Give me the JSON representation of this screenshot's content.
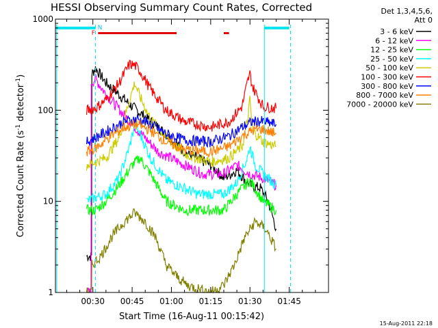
{
  "title": "HESSI Observing Summary Count Rates, Corrected",
  "footer_date": "15-Aug-2011 22:18",
  "chart_data": {
    "type": "line",
    "title": "HESSI Observing Summary Count Rates, Corrected",
    "xlabel": "Start Time (16-Aug-11 00:15:42)",
    "ylabel": "Corrected Count Rate (s^-1 detector^-1)",
    "ylabel_parts": [
      "Corrected Count Rate (s",
      "-1",
      " detector",
      "-1",
      ")"
    ],
    "y_scale": "log",
    "ylim": [
      1,
      1000
    ],
    "xlim_minutes": [
      15.7,
      57.5
    ],
    "x_ticks": [
      {
        "t": 30,
        "label": "00:30"
      },
      {
        "t": 45,
        "label": "00:45"
      },
      {
        "t": 60,
        "label": "01:00"
      },
      {
        "t": 75,
        "label": "01:15"
      },
      {
        "t": 90,
        "label": "01:30"
      },
      {
        "t": 105,
        "label": "01:45"
      }
    ],
    "y_ticks": [
      {
        "v": 1,
        "label": "1"
      },
      {
        "v": 10,
        "label": "10"
      },
      {
        "v": 100,
        "label": "100"
      },
      {
        "v": 1000,
        "label": "1000"
      }
    ],
    "legend": {
      "header": [
        "Det 1,3,4,5,6,",
        "Att 0"
      ],
      "placement": "right"
    },
    "flags": {
      "F_label": "F",
      "N_label": "N",
      "F_segments_min": [
        [
          32,
          62
        ],
        [
          80,
          82
        ]
      ],
      "night_segments_min": [
        [
          15.9,
          31
        ],
        [
          95.5,
          105
        ]
      ]
    },
    "vertical_lines_min": [
      31,
      95.5
    ],
    "data_gaps_min": [
      [
        15.9,
        27.6
      ],
      [
        96.3,
        121
      ]
    ],
    "series": [
      {
        "name": "3 - 6 keV",
        "color": "#000000",
        "points": [
          [
            27.6,
            2.5
          ],
          [
            29.5,
            2.5
          ],
          [
            29.6,
            250
          ],
          [
            31,
            290
          ],
          [
            35,
            200
          ],
          [
            45,
            110
          ],
          [
            55,
            65
          ],
          [
            65,
            35
          ],
          [
            75,
            25
          ],
          [
            80,
            18
          ],
          [
            85,
            22
          ],
          [
            90,
            15
          ],
          [
            94,
            14
          ],
          [
            97,
            10
          ],
          [
            100,
            5
          ]
        ]
      },
      {
        "name": "6 - 12 keV",
        "color": "#ff00ff",
        "points": [
          [
            27.6,
            1
          ],
          [
            29.3,
            1
          ],
          [
            29.4,
            200
          ],
          [
            31,
            220
          ],
          [
            35,
            150
          ],
          [
            45,
            70
          ],
          [
            55,
            35
          ],
          [
            65,
            25
          ],
          [
            72,
            20
          ],
          [
            80,
            20
          ],
          [
            85,
            25
          ],
          [
            90,
            20
          ],
          [
            95,
            18
          ],
          [
            100,
            15
          ]
        ]
      },
      {
        "name": "12 - 25 keV",
        "color": "#00ff00",
        "points": [
          [
            27.6,
            8
          ],
          [
            31,
            8
          ],
          [
            35,
            10
          ],
          [
            40,
            15
          ],
          [
            45,
            25
          ],
          [
            48,
            30
          ],
          [
            52,
            20
          ],
          [
            58,
            10
          ],
          [
            65,
            8
          ],
          [
            80,
            8
          ],
          [
            85,
            12
          ],
          [
            90,
            17
          ],
          [
            95,
            10
          ],
          [
            100,
            8
          ]
        ]
      },
      {
        "name": "25 - 50 keV",
        "color": "#00ffff",
        "points": [
          [
            27.6,
            10
          ],
          [
            31,
            11
          ],
          [
            35,
            12
          ],
          [
            40,
            18
          ],
          [
            44,
            40
          ],
          [
            46,
            70
          ],
          [
            48,
            55
          ],
          [
            52,
            30
          ],
          [
            58,
            17
          ],
          [
            70,
            12
          ],
          [
            80,
            12
          ],
          [
            85,
            16
          ],
          [
            89,
            30
          ],
          [
            90,
            40
          ],
          [
            92,
            25
          ],
          [
            95,
            20
          ],
          [
            100,
            15
          ]
        ]
      },
      {
        "name": "50 - 100 keV",
        "color": "#cccc00",
        "points": [
          [
            27.6,
            25
          ],
          [
            31,
            27
          ],
          [
            35,
            30
          ],
          [
            40,
            50
          ],
          [
            44,
            130
          ],
          [
            46,
            200
          ],
          [
            48,
            140
          ],
          [
            52,
            80
          ],
          [
            58,
            50
          ],
          [
            65,
            33
          ],
          [
            75,
            27
          ],
          [
            82,
            30
          ],
          [
            87,
            40
          ],
          [
            89,
            75
          ],
          [
            90,
            130
          ],
          [
            91,
            60
          ],
          [
            95,
            45
          ],
          [
            100,
            40
          ]
        ]
      },
      {
        "name": "100 - 300 keV",
        "color": "#ff0000",
        "points": [
          [
            27.6,
            100
          ],
          [
            31,
            105
          ],
          [
            35,
            130
          ],
          [
            40,
            200
          ],
          [
            44,
            320
          ],
          [
            46,
            310
          ],
          [
            48,
            270
          ],
          [
            52,
            170
          ],
          [
            58,
            100
          ],
          [
            65,
            75
          ],
          [
            75,
            65
          ],
          [
            82,
            75
          ],
          [
            87,
            110
          ],
          [
            89,
            200
          ],
          [
            90,
            250
          ],
          [
            91,
            180
          ],
          [
            95,
            110
          ],
          [
            100,
            105
          ]
        ]
      },
      {
        "name": "300 - 800 keV",
        "color": "#0000ff",
        "points": [
          [
            27.6,
            45
          ],
          [
            31,
            50
          ],
          [
            36,
            60
          ],
          [
            42,
            75
          ],
          [
            47,
            80
          ],
          [
            52,
            70
          ],
          [
            58,
            55
          ],
          [
            65,
            47
          ],
          [
            75,
            45
          ],
          [
            82,
            52
          ],
          [
            87,
            65
          ],
          [
            91,
            75
          ],
          [
            95,
            75
          ],
          [
            100,
            70
          ]
        ]
      },
      {
        "name": "800 - 7000 keV",
        "color": "#ff8000",
        "points": [
          [
            27.6,
            35
          ],
          [
            31,
            38
          ],
          [
            36,
            50
          ],
          [
            42,
            65
          ],
          [
            47,
            70
          ],
          [
            52,
            60
          ],
          [
            58,
            45
          ],
          [
            65,
            37
          ],
          [
            75,
            35
          ],
          [
            82,
            40
          ],
          [
            87,
            52
          ],
          [
            91,
            60
          ],
          [
            95,
            62
          ],
          [
            100,
            55
          ]
        ]
      },
      {
        "name": "7000 - 20000 keV",
        "color": "#808000",
        "points": [
          [
            27.6,
            1
          ],
          [
            29.5,
            1
          ],
          [
            29.6,
            2
          ],
          [
            33,
            2.5
          ],
          [
            37,
            4
          ],
          [
            42,
            6
          ],
          [
            46,
            7.5
          ],
          [
            50,
            6
          ],
          [
            54,
            4
          ],
          [
            58,
            2
          ],
          [
            62,
            1.5
          ],
          [
            66,
            1.2
          ],
          [
            75,
            1
          ],
          [
            80,
            1.2
          ],
          [
            84,
            2
          ],
          [
            88,
            4
          ],
          [
            92,
            6
          ],
          [
            96,
            5
          ],
          [
            100,
            3
          ]
        ]
      }
    ]
  }
}
